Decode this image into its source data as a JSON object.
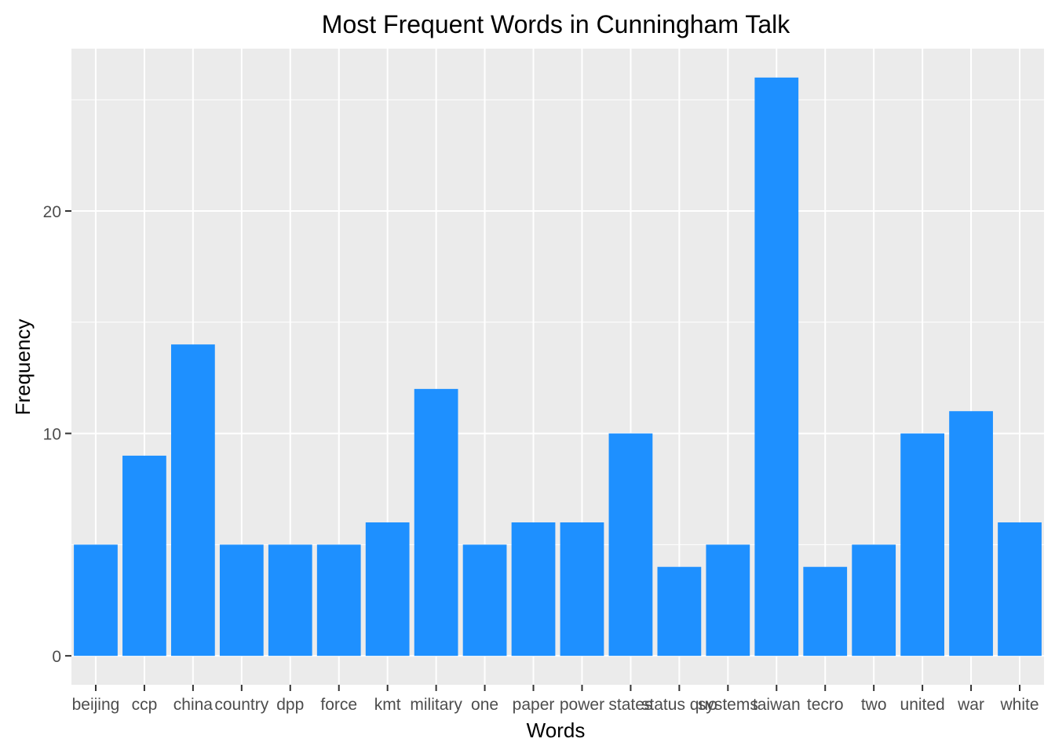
{
  "chart_data": {
    "type": "bar",
    "title": "Most Frequent Words in Cunningham Talk",
    "xlabel": "Words",
    "ylabel": "Frequency",
    "categories": [
      "beijing",
      "ccp",
      "china",
      "country",
      "dpp",
      "force",
      "kmt",
      "military",
      "one",
      "paper",
      "power",
      "states",
      "status quo",
      "systems",
      "taiwan",
      "tecro",
      "two",
      "united",
      "war",
      "white"
    ],
    "values": [
      5,
      9,
      14,
      5,
      5,
      5,
      6,
      12,
      5,
      6,
      6,
      10,
      4,
      5,
      26,
      4,
      5,
      10,
      11,
      6
    ],
    "yticks": [
      0,
      10,
      20
    ],
    "ylim": [
      -1.3,
      27.3
    ],
    "bar_color": "#1E90FF",
    "panel_background": "#EBEBEB",
    "grid": true,
    "legend": "none"
  }
}
